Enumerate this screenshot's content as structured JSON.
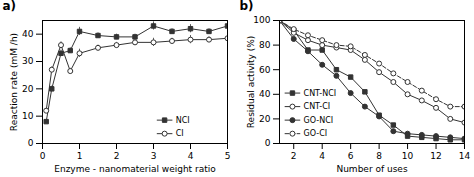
{
  "chart_data": [
    {
      "type": "line",
      "title": "a)",
      "xlabel": "Enzyme - nanomaterial weight ratio",
      "ylabel": "Reaction rate (mM /h)",
      "x": [
        0.1,
        0.25,
        0.5,
        0.75,
        1.0,
        1.5,
        2.0,
        2.5,
        3.0,
        3.5,
        4.0,
        4.5,
        5.0
      ],
      "series": [
        {
          "name": "NCI",
          "color": "#333333",
          "marker": "filled_square",
          "line_style": "solid",
          "values": [
            8,
            20,
            33,
            34,
            41,
            39.5,
            39,
            39,
            43,
            41,
            42,
            41,
            43
          ],
          "error": [
            0.5,
            1.0,
            1.2,
            1.0,
            1.5,
            1.0,
            1.0,
            1.0,
            1.5,
            1.0,
            1.5,
            1.0,
            1.5
          ]
        },
        {
          "name": "CI",
          "color": "#333333",
          "marker": "open_circle",
          "line_style": "solid",
          "values": [
            12,
            27,
            36,
            26.5,
            33,
            35,
            36,
            37,
            37,
            37.5,
            38,
            38,
            38.5
          ],
          "error": [
            0.5,
            1.0,
            1.2,
            1.0,
            1.5,
            1.0,
            1.0,
            1.0,
            1.5,
            1.0,
            1.5,
            1.0,
            1.5
          ]
        }
      ],
      "xlim": [
        0,
        5
      ],
      "ylim": [
        0,
        45
      ],
      "xticks": [
        0,
        1,
        2,
        3,
        4,
        5
      ],
      "yticks": [
        0,
        10,
        20,
        30,
        40
      ],
      "legend": "lower right",
      "grid": false
    },
    {
      "type": "line",
      "title": "b)",
      "xlabel": "Number of uses",
      "ylabel": "Residual activity (%)",
      "x": [
        1,
        2,
        3,
        4,
        5,
        6,
        7,
        8,
        9,
        10,
        11,
        12,
        13,
        14
      ],
      "series": [
        {
          "name": "CNT-NCI",
          "color": "#333333",
          "marker": "filled_square",
          "line_style": "solid",
          "values": [
            100,
            92,
            76,
            76,
            60,
            54,
            42,
            23,
            15,
            6,
            5,
            4,
            3,
            3
          ]
        },
        {
          "name": "CNT-CI",
          "color": "#333333",
          "marker": "open_circle",
          "line_style": "solid",
          "values": [
            100,
            90,
            84,
            80,
            78,
            76,
            68,
            58,
            50,
            40,
            35,
            29,
            20,
            17
          ]
        },
        {
          "name": "GO-NCI",
          "color": "#333333",
          "marker": "filled_circle",
          "line_style": "solid",
          "values": [
            100,
            85,
            75,
            64,
            55,
            41,
            30,
            22,
            10,
            8,
            7,
            6,
            5,
            4
          ]
        },
        {
          "name": "GO-CI",
          "color": "#333333",
          "marker": "open_circle",
          "line_style": "dashed",
          "values": [
            100,
            93,
            88,
            84,
            80,
            79,
            72,
            65,
            57,
            50,
            43,
            36,
            30,
            30
          ]
        }
      ],
      "xlim": [
        1,
        14
      ],
      "ylim": [
        0,
        100
      ],
      "xticks": [
        2,
        4,
        6,
        8,
        10,
        12,
        14
      ],
      "yticks": [
        0,
        20,
        40,
        60,
        80,
        100
      ],
      "legend": "lower left",
      "grid": false
    }
  ]
}
